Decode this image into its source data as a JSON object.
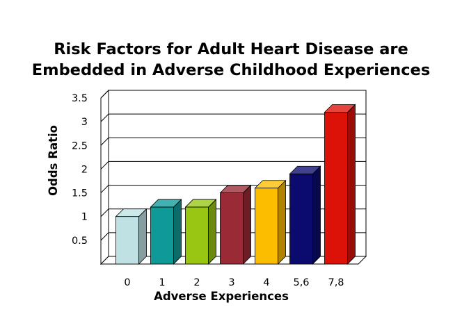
{
  "chart_data": {
    "type": "bar",
    "title_lines": [
      "Risk Factors for Adult Heart Disease are",
      "Embedded in Adverse Childhood Experiences"
    ],
    "xlabel": "Adverse Experiences",
    "ylabel": "Odds Ratio",
    "categories": [
      "0",
      "1",
      "2",
      "3",
      "4",
      "5,6",
      "7,8"
    ],
    "values": [
      1.0,
      1.2,
      1.2,
      1.5,
      1.6,
      1.9,
      3.2
    ],
    "ylim": [
      0,
      3.5
    ],
    "yticks": [
      "0.5",
      "1",
      "1.5",
      "2",
      "2.5",
      "3",
      "3.5"
    ],
    "bar_colors": [
      "#bfe1e3",
      "#0f9a98",
      "#98c613",
      "#9a2a36",
      "#fcbd00",
      "#0b0b6e",
      "#dc1107"
    ],
    "style": "3d",
    "grid": true,
    "legend": "none"
  }
}
